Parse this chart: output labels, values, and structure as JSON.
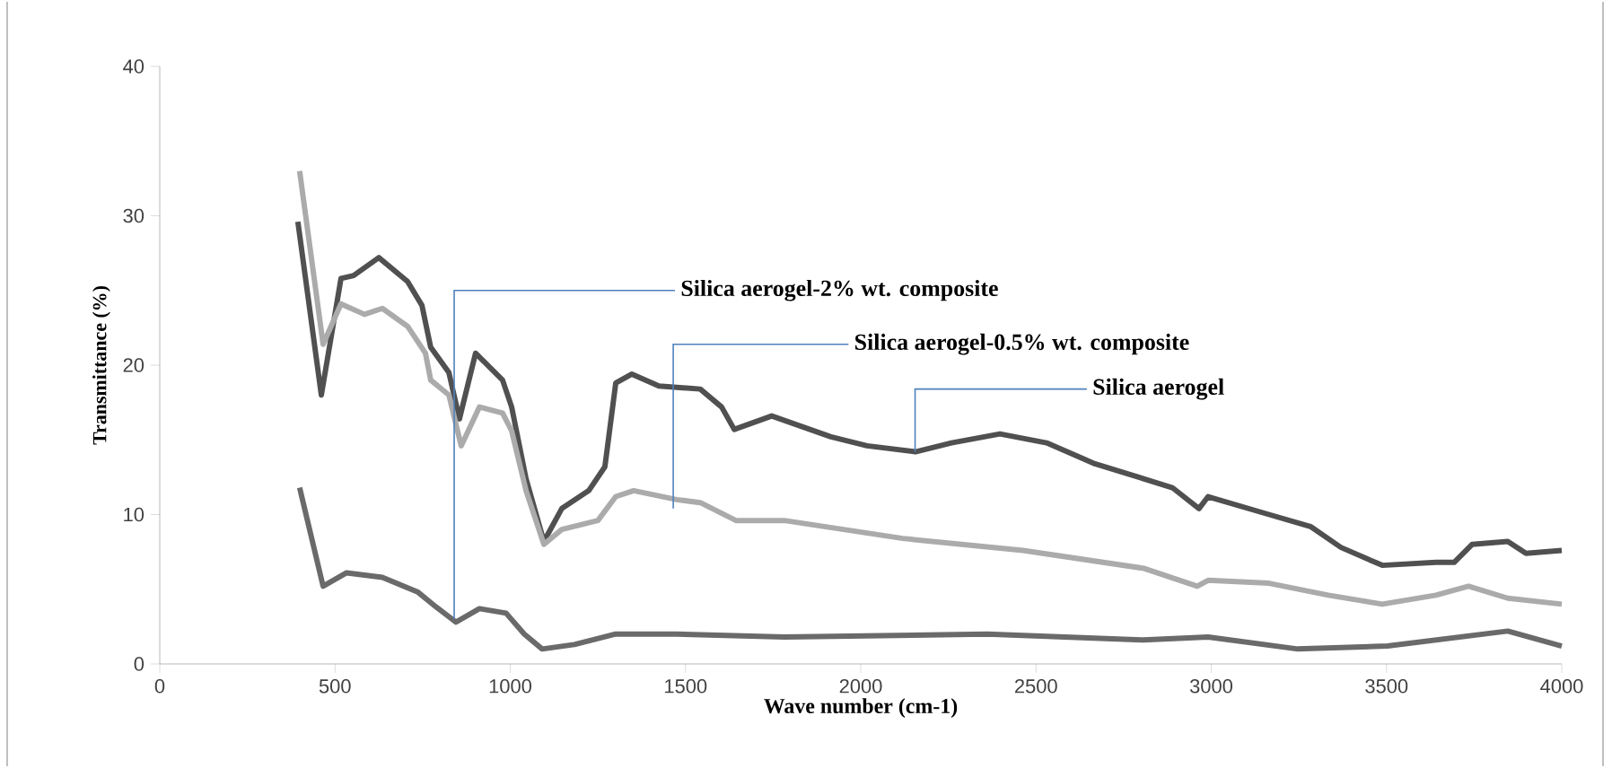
{
  "chart_data": {
    "type": "line",
    "xlabel": "Wave number (cm-1)",
    "ylabel": "Transmittance (%)",
    "xlim": [
      0,
      4000
    ],
    "xticks": [
      0,
      500,
      1000,
      1500,
      2000,
      2500,
      3000,
      3500,
      4000
    ],
    "ylim": [
      0,
      40
    ],
    "yticks": [
      0,
      10,
      20,
      30,
      40
    ],
    "series": [
      {
        "color": "#505050",
        "x": [
          394,
          461,
          517,
          553,
          625,
          707,
          748,
          773,
          825,
          855,
          901,
          978,
          1004,
          1045,
          1096,
          1147,
          1224,
          1270,
          1301,
          1347,
          1424,
          1542,
          1603,
          1639,
          1746,
          1915,
          2018,
          2156,
          2259,
          2397,
          2530,
          2668,
          2807,
          2889,
          2965,
          2991,
          3165,
          3283,
          3370,
          3488,
          3641,
          3693,
          3744,
          3846,
          3898,
          4000
        ],
        "values": [
          29.6,
          18.0,
          25.8,
          26.0,
          27.2,
          25.6,
          24.0,
          21.2,
          19.5,
          16.4,
          20.8,
          19.0,
          17.2,
          12.4,
          8.2,
          10.4,
          11.6,
          13.2,
          18.8,
          19.4,
          18.6,
          18.4,
          17.2,
          15.7,
          16.6,
          15.2,
          14.6,
          14.2,
          14.8,
          15.4,
          14.8,
          13.4,
          12.4,
          11.8,
          10.4,
          11.2,
          10.0,
          9.2,
          7.8,
          6.6,
          6.8,
          6.8,
          8.0,
          8.2,
          7.4,
          7.6
        ]
      },
      {
        "color": "#ababab",
        "x": [
          399,
          466,
          517,
          584,
          635,
          707,
          758,
          773,
          825,
          860,
          912,
          978,
          1004,
          1045,
          1096,
          1147,
          1250,
          1301,
          1352,
          1475,
          1542,
          1644,
          1782,
          2120,
          2463,
          2807,
          2960,
          2991,
          3165,
          3334,
          3488,
          3641,
          3734,
          3846,
          4000
        ],
        "values": [
          33.0,
          21.4,
          24.1,
          23.4,
          23.8,
          22.6,
          20.8,
          19.0,
          18.0,
          14.6,
          17.2,
          16.8,
          15.6,
          11.6,
          8.0,
          9.0,
          9.6,
          11.2,
          11.6,
          11.0,
          10.8,
          9.6,
          9.6,
          8.4,
          7.6,
          6.4,
          5.2,
          5.6,
          5.4,
          4.6,
          4.0,
          4.6,
          5.2,
          4.4,
          4.0
        ]
      },
      {
        "color": "#6a6a6a",
        "x": [
          399,
          466,
          533,
          635,
          737,
          789,
          845,
          912,
          988,
          1040,
          1091,
          1183,
          1301,
          1475,
          1782,
          2361,
          2807,
          2991,
          3247,
          3503,
          3846,
          4000
        ],
        "values": [
          11.8,
          5.2,
          6.1,
          5.8,
          4.8,
          3.8,
          2.8,
          3.7,
          3.4,
          2.0,
          1.0,
          1.3,
          2.0,
          2.0,
          1.8,
          2.0,
          1.6,
          1.8,
          1.0,
          1.2,
          2.2,
          1.2
        ]
      }
    ],
    "annotations": [
      {
        "text": "Silica aerogel-2% wt. composite",
        "x": 840,
        "y": 3
      },
      {
        "text": "Silica aerogel-0.5% wt. composite",
        "x": 1465,
        "y": 10.4
      },
      {
        "text": "Silica aerogel",
        "x": 2155,
        "y": 14.2
      }
    ]
  }
}
